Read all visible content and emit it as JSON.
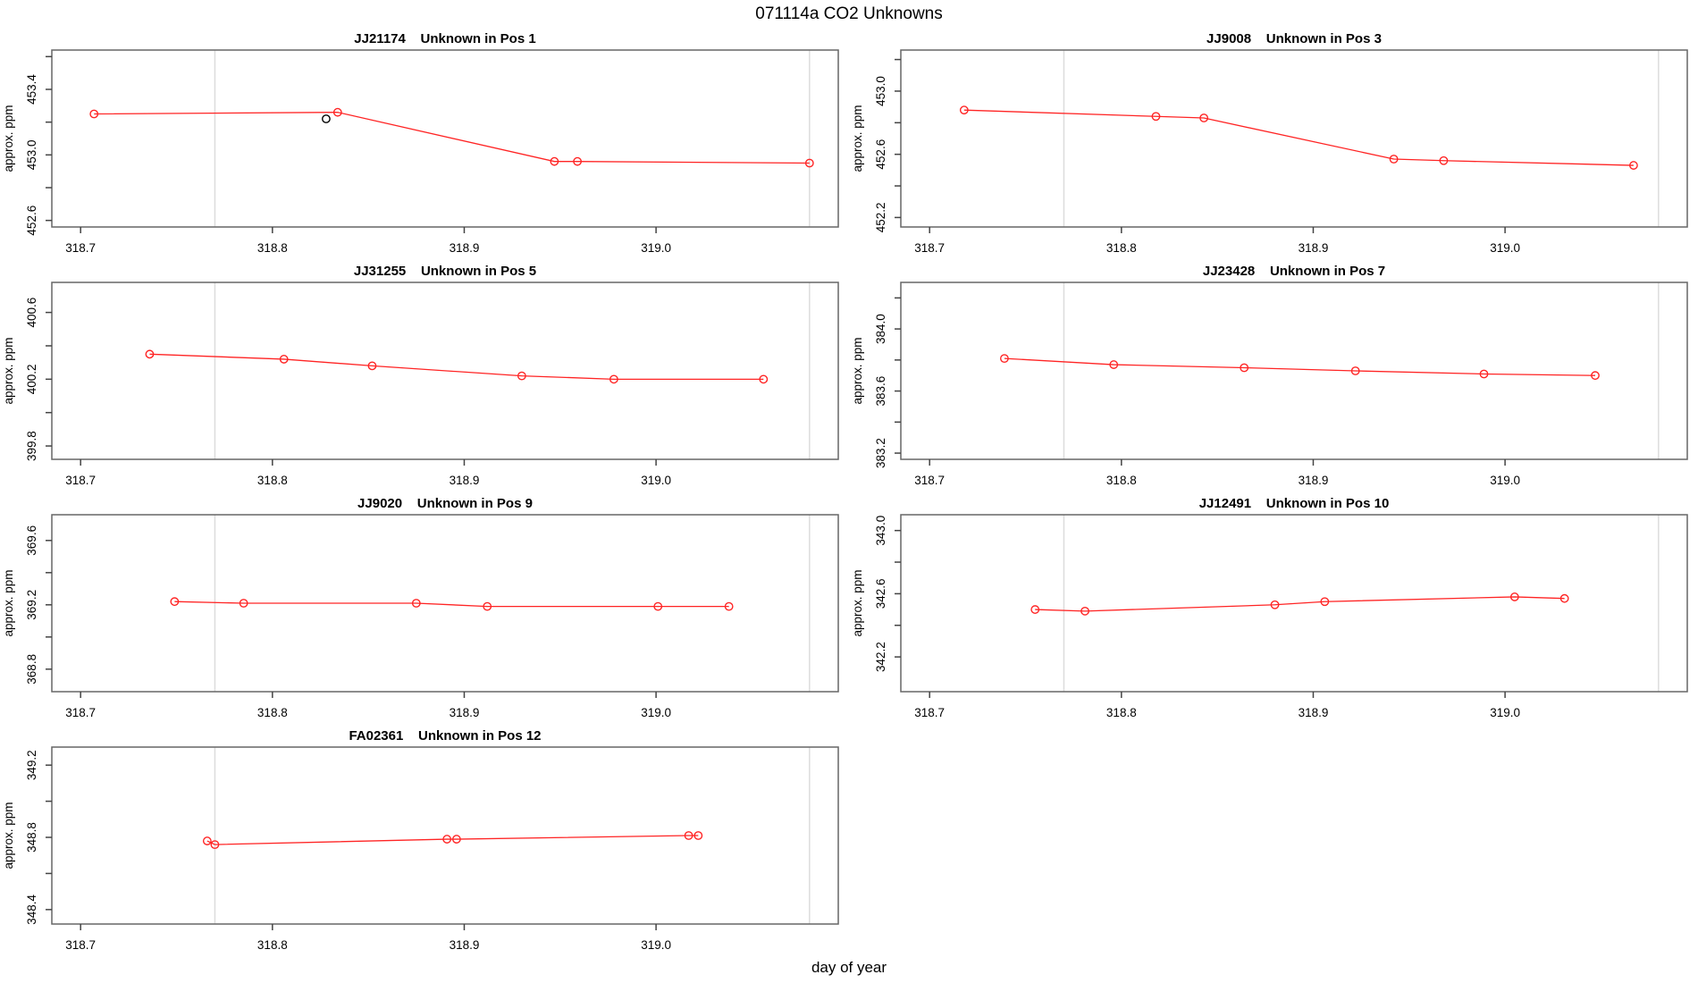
{
  "figure": {
    "title": "071114a  CO2 Unknowns",
    "xlabel": "day of year",
    "background": "#ffffff",
    "line_color": "#ff2424",
    "outlier_color": "#000000",
    "grid_color": "#dcdcdc",
    "box_color": "#666666",
    "xlim": [
      318.685,
      319.095
    ],
    "x_ticks": [
      318.7,
      318.8,
      318.9,
      319.0
    ],
    "x_tick_labels": [
      "318.7",
      "318.8",
      "318.9",
      "319.0"
    ],
    "gridlines_x": [
      318.77,
      319.08
    ]
  },
  "chart_data": [
    {
      "type": "line",
      "id": "JJ21174",
      "title": "JJ21174    Unknown in Pos 1",
      "ylabel": "approx. ppm",
      "ylim": [
        452.56,
        453.64
      ],
      "y_ticks": [
        452.6,
        452.8,
        453.0,
        453.2,
        453.4,
        453.6
      ],
      "y_tick_labels": [
        "452.6",
        "",
        "453.0",
        "",
        "453.4",
        ""
      ],
      "series": [
        {
          "name": "approx-ppm",
          "color": "#ff2424",
          "marker": "open-circle",
          "line": true,
          "x": [
            318.707,
            318.834,
            318.947,
            318.959,
            319.08
          ],
          "y": [
            453.25,
            453.26,
            452.96,
            452.96,
            452.95
          ]
        },
        {
          "name": "flagged-point",
          "color": "#000000",
          "marker": "open-circle",
          "line": false,
          "x": [
            318.828
          ],
          "y": [
            453.22
          ]
        }
      ]
    },
    {
      "type": "line",
      "id": "JJ9008",
      "title": "JJ9008    Unknown in Pos 3",
      "ylabel": "approx. ppm",
      "ylim": [
        452.14,
        453.26
      ],
      "y_ticks": [
        452.2,
        452.4,
        452.6,
        452.8,
        453.0,
        453.2
      ],
      "y_tick_labels": [
        "452.2",
        "",
        "452.6",
        "",
        "453.0",
        ""
      ],
      "series": [
        {
          "name": "approx-ppm",
          "color": "#ff2424",
          "marker": "open-circle",
          "line": true,
          "x": [
            318.718,
            318.818,
            318.843,
            318.942,
            318.968,
            319.067
          ],
          "y": [
            452.88,
            452.84,
            452.83,
            452.57,
            452.56,
            452.53
          ]
        }
      ]
    },
    {
      "type": "line",
      "id": "JJ31255",
      "title": "JJ31255    Unknown in Pos 5",
      "ylabel": "approx. ppm",
      "ylim": [
        399.72,
        400.78
      ],
      "y_ticks": [
        399.8,
        400.0,
        400.2,
        400.4,
        400.6
      ],
      "y_tick_labels": [
        "399.8",
        "",
        "400.2",
        "",
        "400.6"
      ],
      "series": [
        {
          "name": "approx-ppm",
          "color": "#ff2424",
          "marker": "open-circle",
          "line": true,
          "x": [
            318.736,
            318.806,
            318.852,
            318.93,
            318.978,
            319.056
          ],
          "y": [
            400.35,
            400.32,
            400.28,
            400.22,
            400.2,
            400.2
          ]
        }
      ]
    },
    {
      "type": "line",
      "id": "JJ23428",
      "title": "JJ23428    Unknown in Pos 7",
      "ylabel": "approx. ppm",
      "ylim": [
        383.16,
        384.3
      ],
      "y_ticks": [
        383.2,
        383.4,
        383.6,
        383.8,
        384.0,
        384.2
      ],
      "y_tick_labels": [
        "383.2",
        "",
        "383.6",
        "",
        "384.0",
        ""
      ],
      "series": [
        {
          "name": "approx-ppm",
          "color": "#ff2424",
          "marker": "open-circle",
          "line": true,
          "x": [
            318.739,
            318.796,
            318.864,
            318.922,
            318.989,
            319.047
          ],
          "y": [
            383.81,
            383.77,
            383.75,
            383.73,
            383.71,
            383.7
          ]
        }
      ]
    },
    {
      "type": "line",
      "id": "JJ9020",
      "title": "JJ9020    Unknown in Pos 9",
      "ylabel": "approx. ppm",
      "ylim": [
        368.66,
        369.76
      ],
      "y_ticks": [
        368.8,
        369.0,
        369.2,
        369.4,
        369.6
      ],
      "y_tick_labels": [
        "368.8",
        "",
        "369.2",
        "",
        "369.6"
      ],
      "series": [
        {
          "name": "approx-ppm",
          "color": "#ff2424",
          "marker": "open-circle",
          "line": true,
          "x": [
            318.749,
            318.785,
            318.875,
            318.912,
            319.001,
            319.038
          ],
          "y": [
            369.22,
            369.21,
            369.21,
            369.19,
            369.19,
            369.19
          ]
        }
      ]
    },
    {
      "type": "line",
      "id": "JJ12491",
      "title": "JJ12491    Unknown in Pos 10",
      "ylabel": "approx. ppm",
      "ylim": [
        341.98,
        343.1
      ],
      "y_ticks": [
        342.2,
        342.4,
        342.6,
        342.8,
        343.0
      ],
      "y_tick_labels": [
        "342.2",
        "",
        "342.6",
        "",
        "343.0"
      ],
      "series": [
        {
          "name": "approx-ppm",
          "color": "#ff2424",
          "marker": "open-circle",
          "line": true,
          "x": [
            318.755,
            318.781,
            318.88,
            318.906,
            319.005,
            319.031
          ],
          "y": [
            342.5,
            342.49,
            342.53,
            342.55,
            342.58,
            342.57
          ]
        }
      ]
    },
    {
      "type": "line",
      "id": "FA02361",
      "title": "FA02361    Unknown in Pos 12",
      "ylabel": "approx. ppm",
      "ylim": [
        348.32,
        349.3
      ],
      "y_ticks": [
        348.4,
        348.6,
        348.8,
        349.0,
        349.2
      ],
      "y_tick_labels": [
        "348.4",
        "",
        "348.8",
        "",
        "349.2"
      ],
      "series": [
        {
          "name": "approx-ppm",
          "color": "#ff2424",
          "marker": "open-circle",
          "line": true,
          "x": [
            318.766,
            318.77,
            318.891,
            318.896,
            319.017,
            319.022
          ],
          "y": [
            348.78,
            348.76,
            348.79,
            348.79,
            348.81,
            348.81
          ]
        }
      ]
    }
  ]
}
